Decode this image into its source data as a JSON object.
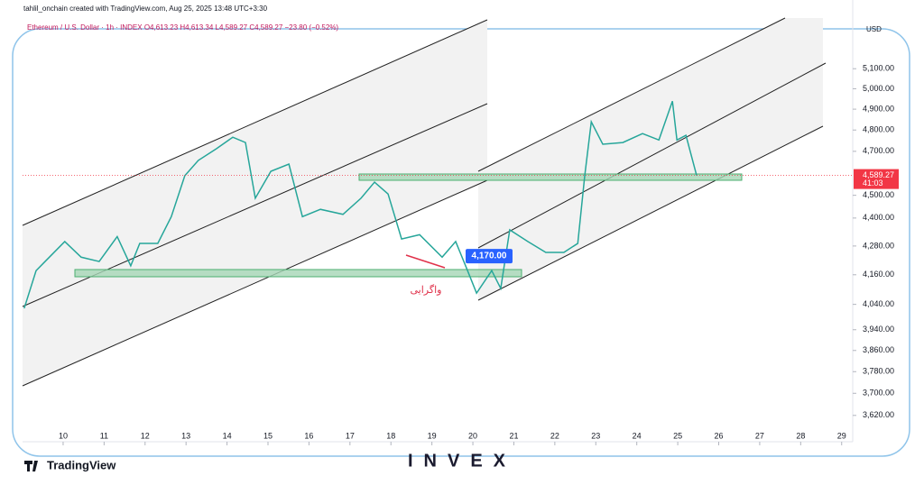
{
  "chart_data": {
    "type": "line",
    "credit": "tahlil_onchain created with TradingView.com, Aug 25, 2025 13:48 UTC+3:30",
    "title": "Ethereum / U.S. Dollar · 1h · INDEX  O4,613.23  H4,613.34  L4,589.27  C4,589.27  −23.80 (−0.52%)",
    "y_unit": "USD",
    "log_scale": true,
    "grid": false,
    "x": [
      9.05,
      9.34,
      9.56,
      10.04,
      10.44,
      10.88,
      11.32,
      11.65,
      11.87,
      12.31,
      12.64,
      12.97,
      13.3,
      13.74,
      14.14,
      14.45,
      14.69,
      15.07,
      15.51,
      15.84,
      16.28,
      16.83,
      17.27,
      17.6,
      17.93,
      18.26,
      18.7,
      19.25,
      19.58,
      19.87,
      20.09,
      20.46,
      20.68,
      20.9,
      21.34,
      21.78,
      22.22,
      22.56,
      22.73,
      22.89,
      23.17,
      23.66,
      24.14,
      24.54,
      24.87,
      24.98,
      25.2,
      25.46
    ],
    "series": [
      {
        "name": "ETHUSD",
        "color": "#26a69a",
        "values": [
          4024,
          4177,
          4215,
          4299,
          4233,
          4215,
          4320,
          4197,
          4291,
          4291,
          4406,
          4588,
          4658,
          4712,
          4766,
          4741,
          4487,
          4608,
          4641,
          4406,
          4438,
          4416,
          4487,
          4559,
          4506,
          4310,
          4328,
          4233,
          4299,
          4177,
          4085,
          4177,
          4104,
          4349,
          4299,
          4253,
          4253,
          4291,
          4588,
          4839,
          4733,
          4741,
          4783,
          4753,
          4939,
          4753,
          4775,
          4589.27
        ]
      }
    ],
    "xlim": [
      9.01,
      29.27
    ],
    "xticks": [
      10,
      11,
      12,
      13,
      14,
      15,
      16,
      17,
      18,
      19,
      20,
      21,
      22,
      23,
      24,
      25,
      26,
      27,
      28,
      29
    ],
    "ylim": [
      3527,
      5362
    ],
    "yticks": [
      {
        "value": 5100,
        "label": "5,100.00"
      },
      {
        "value": 5000,
        "label": "5,000.00"
      },
      {
        "value": 4900,
        "label": "4,900.00"
      },
      {
        "value": 4800,
        "label": "4,800.00"
      },
      {
        "value": 4700,
        "label": "4,700.00"
      },
      {
        "value": 4500,
        "label": "4,500.00"
      },
      {
        "value": 4400,
        "label": "4,400.00"
      },
      {
        "value": 4280,
        "label": "4,280.00"
      },
      {
        "value": 4160,
        "label": "4,160.00"
      },
      {
        "value": 4040,
        "label": "4,040.00"
      },
      {
        "value": 3940,
        "label": "3,940.00"
      },
      {
        "value": 3860,
        "label": "3,860.00"
      },
      {
        "value": 3780,
        "label": "3,780.00"
      },
      {
        "value": 3700,
        "label": "3,700.00"
      },
      {
        "value": 3620,
        "label": "3,620.00"
      }
    ],
    "last_price": {
      "value": 4589.27,
      "label": "4,589.27"
    },
    "countdown": "41:03",
    "marker_price": {
      "value": 4170,
      "label": "4,170.00"
    },
    "annotation": "واگرایی"
  },
  "branding": {
    "logo": "TradingView",
    "watermark": "INVEX"
  }
}
